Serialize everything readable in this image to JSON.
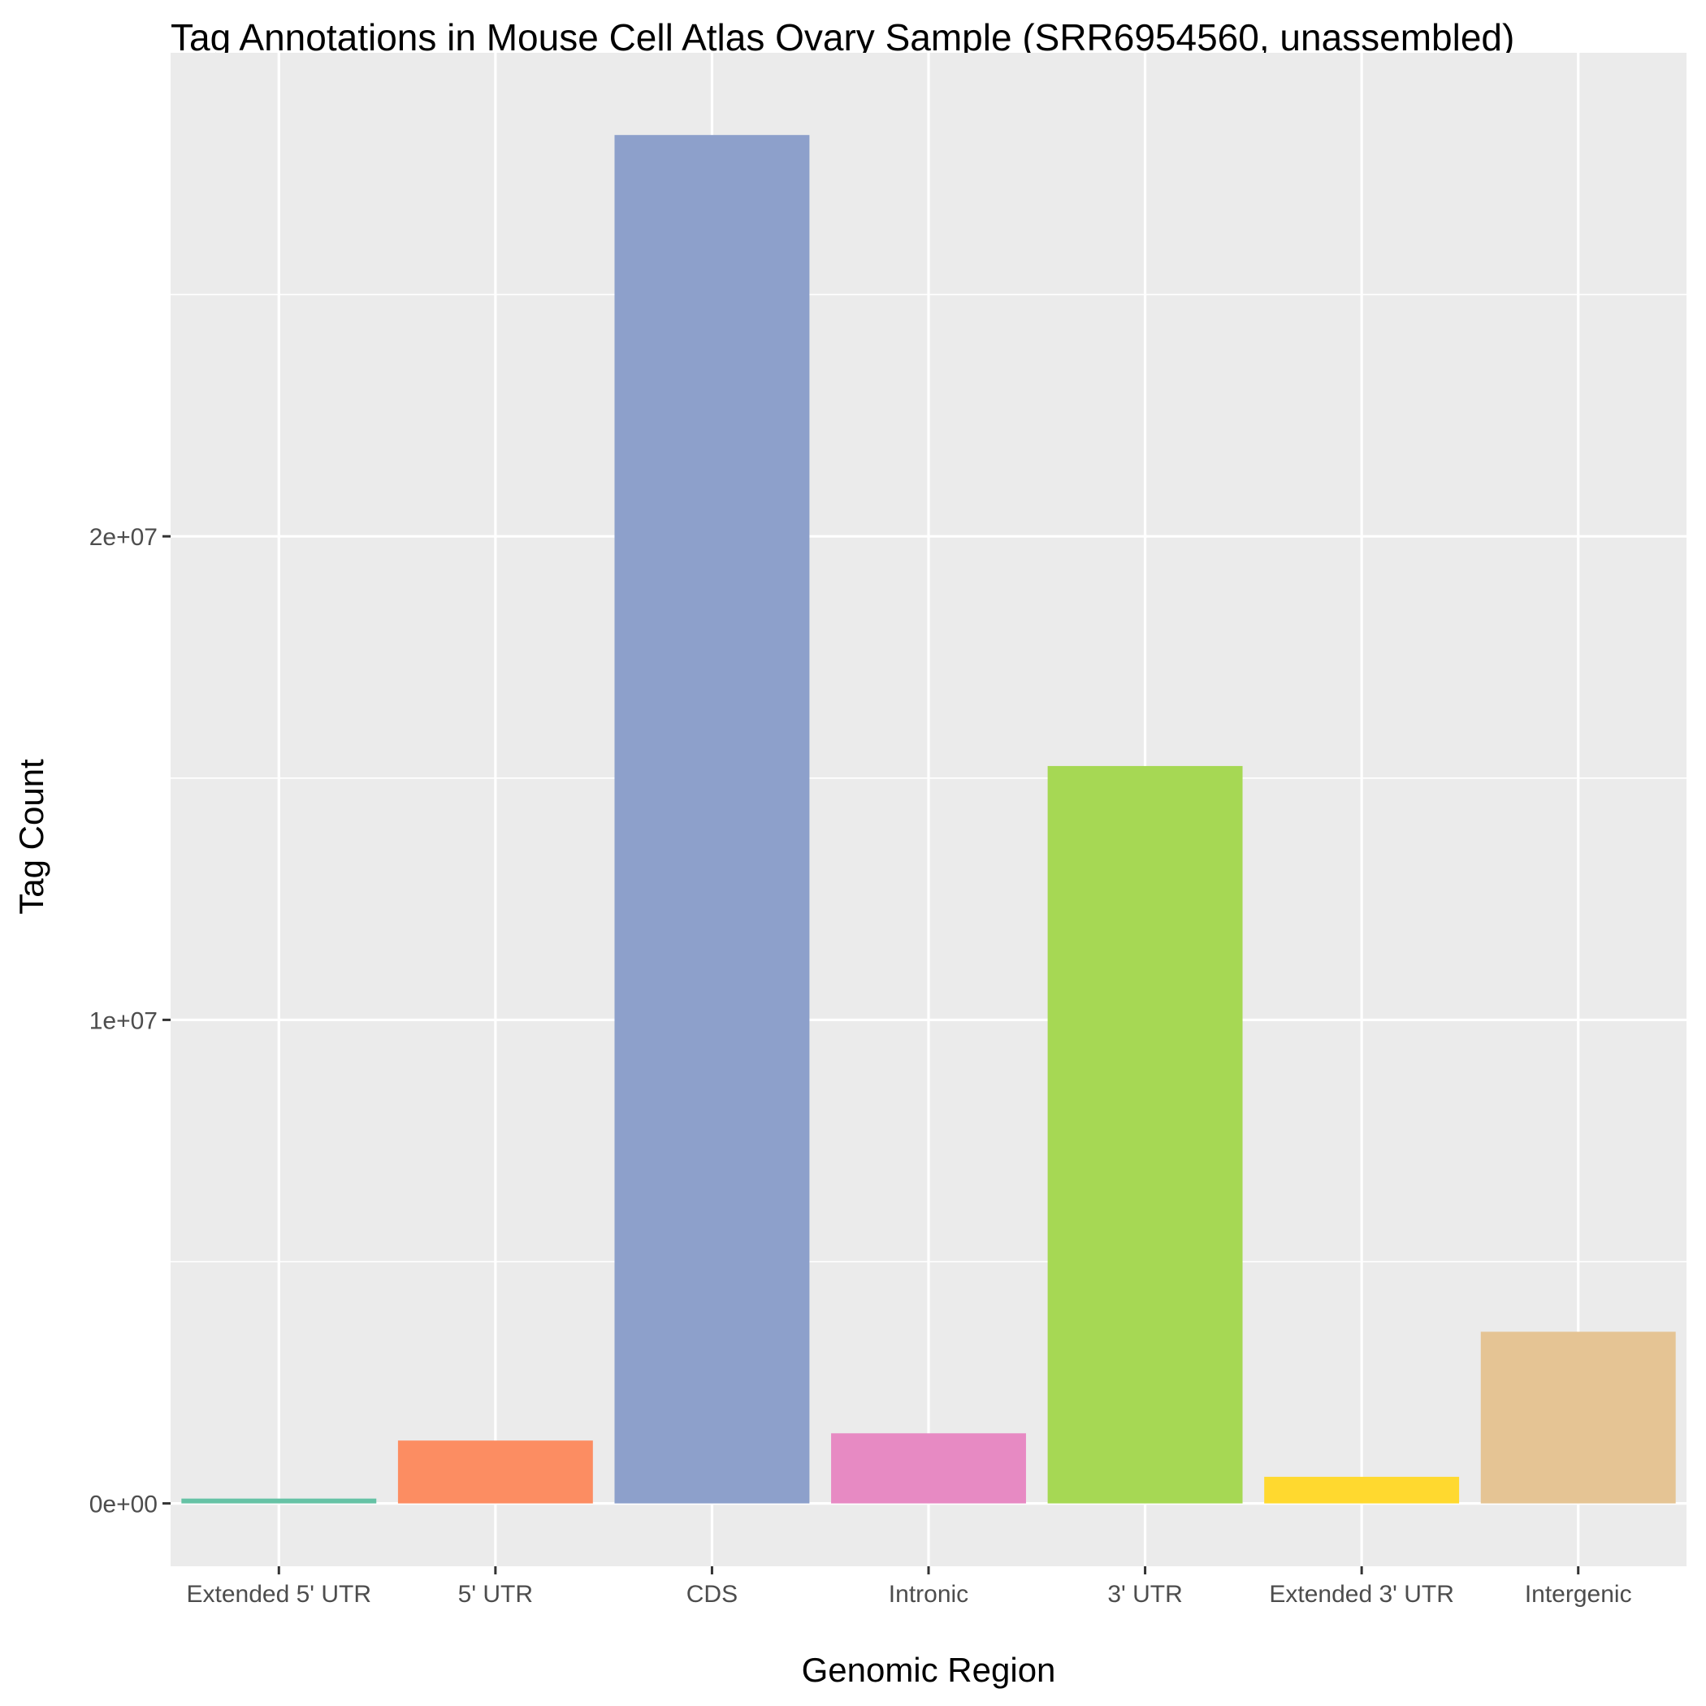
{
  "chart_data": {
    "type": "bar",
    "title": "Tag Annotations in Mouse Cell Atlas Ovary Sample (SRR6954560, unassembled)",
    "xlabel": "Genomic Region",
    "ylabel": "Tag Count",
    "categories": [
      "Extended 5' UTR",
      "5' UTR",
      "CDS",
      "Intronic",
      "3' UTR",
      "Extended 3' UTR",
      "Intergenic"
    ],
    "values": [
      100000,
      1300000,
      28300000,
      1450000,
      15250000,
      550000,
      3550000
    ],
    "colors": [
      "#66c2a5",
      "#fc8d62",
      "#8da0cb",
      "#e78ac3",
      "#a6d854",
      "#ffd92f",
      "#e5c494"
    ],
    "ylim": [
      -1300000,
      30000000
    ],
    "yticks": [
      0,
      10000000,
      20000000
    ],
    "ytick_labels": [
      "0e+00",
      "1e+07",
      "2e+07"
    ],
    "grid": true,
    "panel_background": "#ebebeb",
    "grid_color": "#ffffff",
    "legend": "none"
  }
}
